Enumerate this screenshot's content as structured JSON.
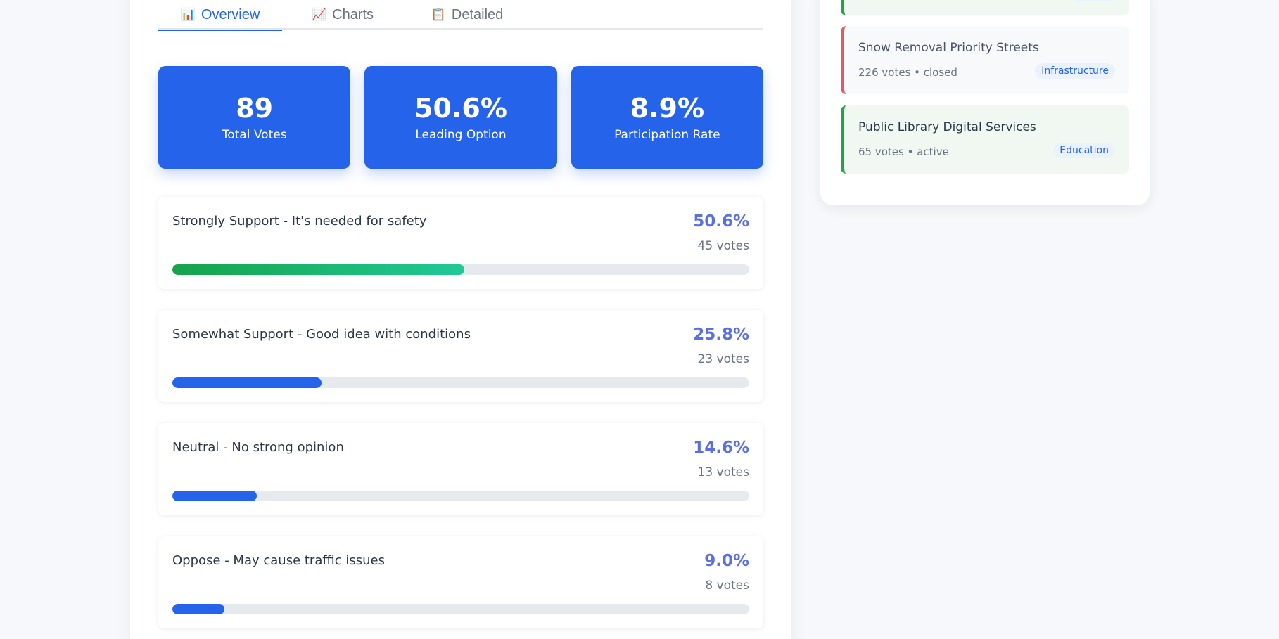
{
  "tabs": [
    {
      "icon": "📊",
      "label": "Overview",
      "active": true
    },
    {
      "icon": "📈",
      "label": "Charts",
      "active": false
    },
    {
      "icon": "📋",
      "label": "Detailed",
      "active": false
    }
  ],
  "stats": [
    {
      "value": "89",
      "label": "Total Votes"
    },
    {
      "value": "50.6%",
      "label": "Leading Option"
    },
    {
      "value": "8.9%",
      "label": "Participation Rate"
    }
  ],
  "options": [
    {
      "label": "Strongly Support - It's needed for safety",
      "percent": "50.6%",
      "votes": "45 votes",
      "share": 50.6
    },
    {
      "label": "Somewhat Support - Good idea with conditions",
      "percent": "25.8%",
      "votes": "23 votes",
      "share": 25.8
    },
    {
      "label": "Neutral - No strong opinion",
      "percent": "14.6%",
      "votes": "13 votes",
      "share": 14.6
    },
    {
      "label": "Oppose - May cause traffic issues",
      "percent": "9.0%",
      "votes": "8 votes",
      "share": 9.0
    }
  ],
  "polls": [
    {
      "title": "Snow Removal Priority Streets",
      "meta": "226 votes • closed",
      "tag": "Infrastructure",
      "status": "closed"
    },
    {
      "title": "Public Library Digital Services",
      "meta": "65 votes • active",
      "tag": "Education",
      "status": "active"
    }
  ],
  "colors": {
    "accent": "#2563eb",
    "leader_start": "#16a34a",
    "leader_end": "#20c997",
    "active_border": "#22a447",
    "closed_border": "#e05a64"
  }
}
